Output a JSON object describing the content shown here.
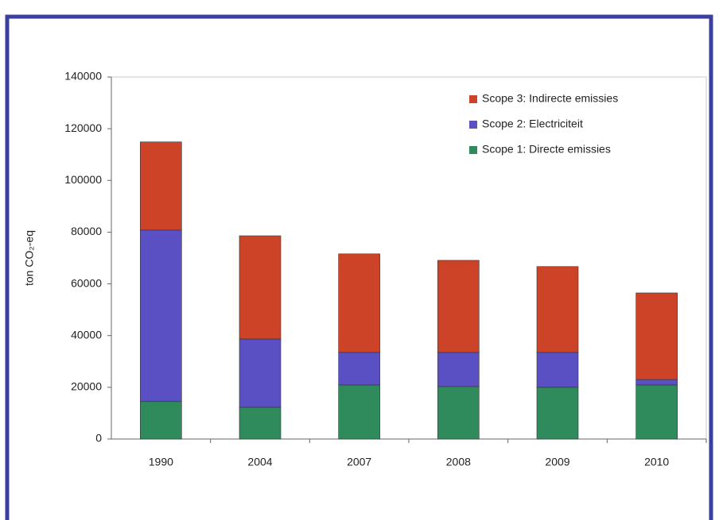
{
  "chart_data": {
    "type": "stacked-bar",
    "y_label": "ton CO₂-eq",
    "categories": [
      "1990",
      "2004",
      "2007",
      "2008",
      "2009",
      "2010"
    ],
    "series": [
      {
        "name": "Scope 1: Directe emissies",
        "color": "#2f8a5c",
        "values": [
          14500,
          12300,
          20900,
          20300,
          20000,
          20900
        ]
      },
      {
        "name": "Scope 2: Electriciteit",
        "color": "#5a50c4",
        "values": [
          66300,
          26400,
          12600,
          13200,
          13500,
          2100
        ]
      },
      {
        "name": "Scope 3: Indirecte emissies",
        "color": "#cc4328",
        "values": [
          34100,
          39900,
          38100,
          35600,
          33200,
          33500
        ]
      }
    ],
    "ylim": [
      0,
      140000
    ],
    "yticks": [
      0,
      20000,
      40000,
      60000,
      80000,
      100000,
      120000,
      140000
    ],
    "grid": false,
    "legend": "top-right"
  }
}
